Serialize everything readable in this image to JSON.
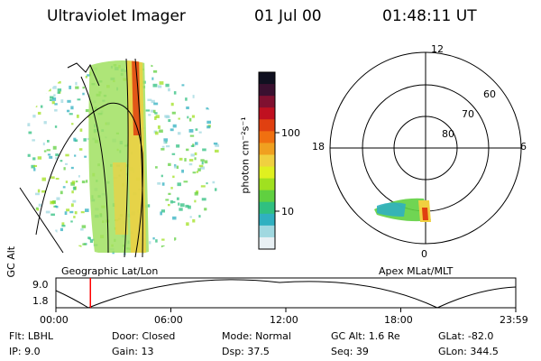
{
  "header": {
    "instrument": "Ultraviolet Imager",
    "date": "01 Jul 00",
    "time": "01:48:11 UT"
  },
  "colorbar": {
    "label": "photon cm⁻²s⁻¹",
    "ticks": [
      "100",
      "10"
    ],
    "colors": [
      "#101020",
      "#3a1030",
      "#801030",
      "#c01020",
      "#e04010",
      "#f07010",
      "#f0a020",
      "#f0d040",
      "#e0f020",
      "#a0e020",
      "#60d040",
      "#30c080",
      "#30b0c0",
      "#a0d8e0",
      "#e8f0f4"
    ]
  },
  "geo_panel": {
    "caption": "Geographic Lat/Lon"
  },
  "polar_panel": {
    "caption": "Apex MLat/MLT",
    "mlt_labels": {
      "top": "12",
      "left": "18",
      "right": "6",
      "bottom": "0"
    },
    "lat_labels": [
      "60",
      "70",
      "80"
    ]
  },
  "timeline": {
    "ylabel": "GC Alt",
    "y_ticks": [
      "9.0",
      "1.8"
    ],
    "x_ticks": [
      "00:00",
      "06:00",
      "12:00",
      "18:00",
      "23:59"
    ],
    "current_time_fraction": 0.075,
    "marker_color": "#ff0000"
  },
  "info": {
    "flt": "Flt:  LBHL",
    "ip": "IP:  9.0",
    "door": "Door: Closed",
    "gain": "Gain: 13",
    "mode": "Mode: Normal",
    "dsp": "Dsp:     37.5",
    "gc_alt": "GC Alt: 1.6 Re",
    "seq": "Seq: 39",
    "glat": "GLat: -82.0",
    "glon": "GLon: 344.5"
  }
}
